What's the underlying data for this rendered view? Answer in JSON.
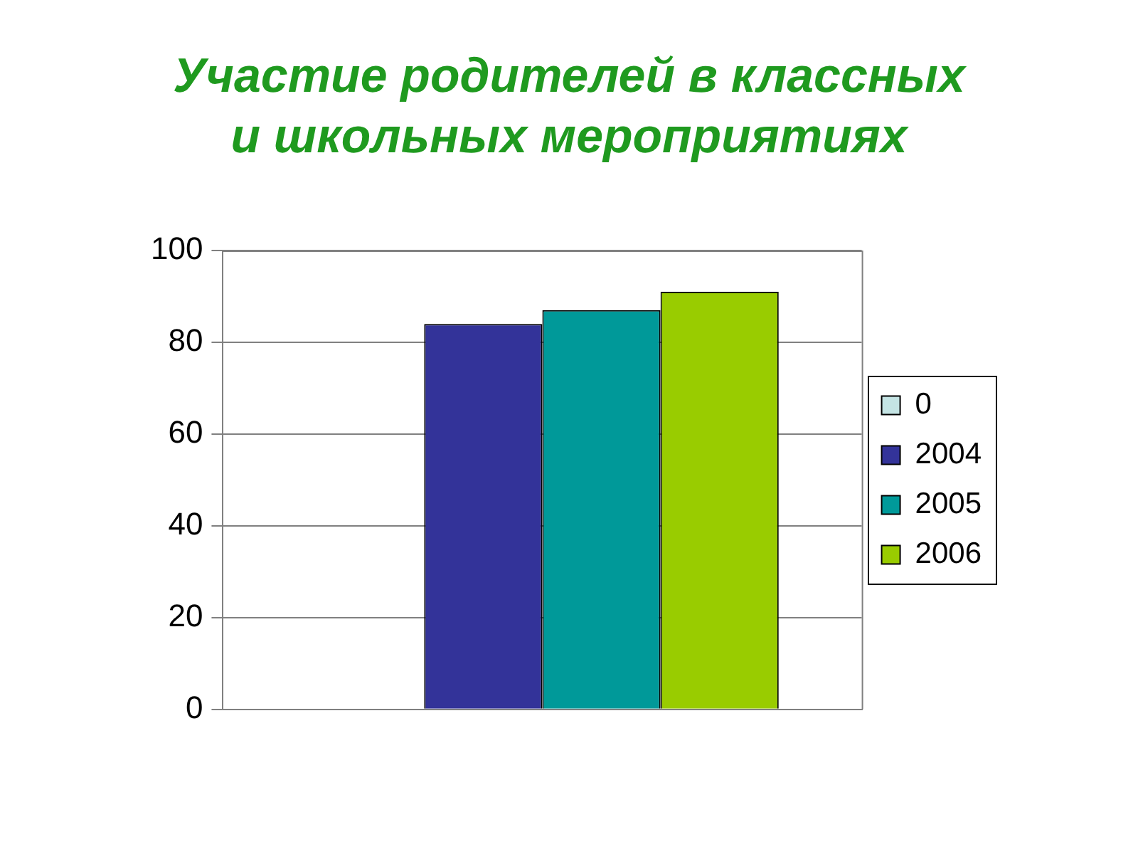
{
  "chart_data": {
    "type": "bar",
    "title": "Участие родителей в классных\nи школьных мероприятиях",
    "categories": [
      null
    ],
    "series": [
      {
        "name": "0",
        "color": "#c4e4e4",
        "values": [
          0
        ]
      },
      {
        "name": "2004",
        "color": "#333399",
        "values": [
          84
        ]
      },
      {
        "name": "2005",
        "color": "#009999",
        "values": [
          87
        ]
      },
      {
        "name": "2006",
        "color": "#99cc00",
        "values": [
          91
        ]
      }
    ],
    "ylim": [
      0,
      100
    ],
    "yticks": [
      0,
      20,
      40,
      60,
      80,
      100
    ],
    "grid": "y",
    "legend": "right"
  }
}
